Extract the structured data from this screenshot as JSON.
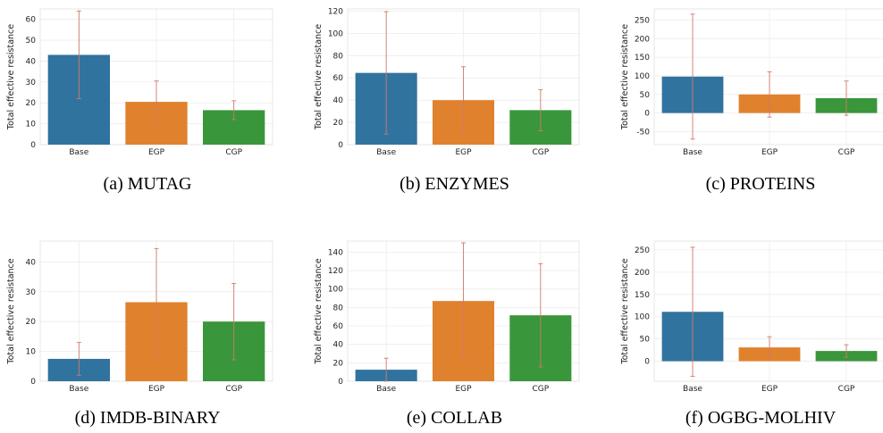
{
  "colors": {
    "Base": "#31739f",
    "EGP": "#e0822d",
    "CGP": "#3a963a"
  },
  "chart_data": [
    {
      "type": "bar",
      "caption": "(a) MUTAG",
      "ylabel": "Total effective resistance",
      "categories": [
        "Base",
        "EGP",
        "CGP"
      ],
      "values": [
        43,
        20.5,
        16.5
      ],
      "errors": [
        21,
        10,
        4.5
      ],
      "ylim": [
        0,
        65
      ],
      "yticks": [
        0,
        10,
        20,
        30,
        40,
        50,
        60
      ],
      "grid": true
    },
    {
      "type": "bar",
      "caption": "(b) ENZYMES",
      "ylabel": "Total effective resistance",
      "categories": [
        "Base",
        "EGP",
        "CGP"
      ],
      "values": [
        64.5,
        40,
        31
      ],
      "errors": [
        55,
        30,
        18.5
      ],
      "ylim": [
        0,
        122
      ],
      "yticks": [
        0,
        20,
        40,
        60,
        80,
        100,
        120
      ],
      "grid": true
    },
    {
      "type": "bar",
      "caption": "(c) PROTEINS",
      "ylabel": "Total effective resistance",
      "categories": [
        "Base",
        "EGP",
        "CGP"
      ],
      "values": [
        98,
        50,
        40
      ],
      "errors": [
        168,
        61,
        46
      ],
      "ylim": [
        -85,
        280
      ],
      "yticks": [
        -50,
        0,
        50,
        100,
        150,
        200,
        250
      ],
      "grid": true
    },
    {
      "type": "bar",
      "caption": "(d) IMDB-BINARY",
      "ylabel": "Total effective resistance",
      "categories": [
        "Base",
        "EGP",
        "CGP"
      ],
      "values": [
        7.5,
        26.5,
        20
      ],
      "errors": [
        5.5,
        18,
        12.8
      ],
      "ylim": [
        0,
        47
      ],
      "yticks": [
        0,
        10,
        20,
        30,
        40
      ],
      "grid": true
    },
    {
      "type": "bar",
      "caption": "(e) COLLAB",
      "ylabel": "Total effective resistance",
      "categories": [
        "Base",
        "EGP",
        "CGP"
      ],
      "values": [
        12.5,
        87,
        71.5
      ],
      "errors": [
        12.5,
        63,
        56
      ],
      "ylim": [
        0,
        152
      ],
      "yticks": [
        0,
        20,
        40,
        60,
        80,
        100,
        120,
        140
      ],
      "grid": true
    },
    {
      "type": "bar",
      "caption": "(f) OGBG-MOLHIV",
      "ylabel": "Total effective resistance",
      "categories": [
        "Base",
        "EGP",
        "CGP"
      ],
      "values": [
        111,
        31,
        23
      ],
      "errors": [
        145,
        24,
        14
      ],
      "ylim": [
        -45,
        270
      ],
      "yticks": [
        0,
        50,
        100,
        150,
        200,
        250
      ],
      "grid": true
    }
  ]
}
